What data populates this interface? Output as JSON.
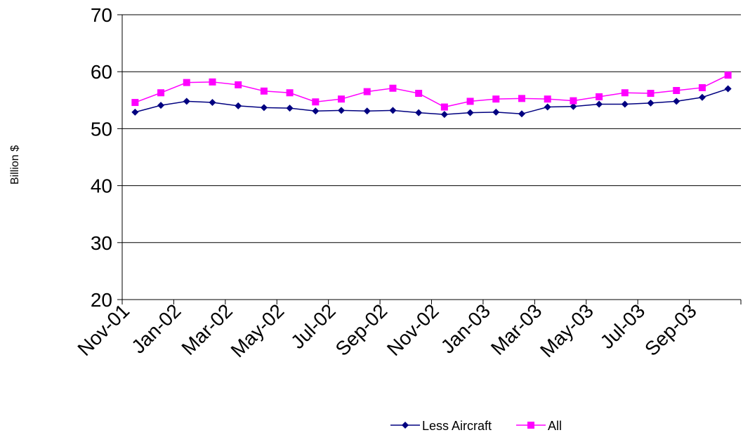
{
  "chart_data": {
    "type": "line",
    "ylabel": "Billion $",
    "ylim": [
      20,
      70
    ],
    "yticks": [
      20,
      30,
      40,
      50,
      60,
      70
    ],
    "xtick_labels": [
      "Nov-01",
      "Jan-02",
      "Mar-02",
      "May-02",
      "Jul-02",
      "Sep-02",
      "Nov-02",
      "Jan-03",
      "Mar-03",
      "May-03",
      "Jul-03",
      "Sep-03"
    ],
    "x": [
      "Nov-01",
      "Dec-01",
      "Jan-02",
      "Feb-02",
      "Mar-02",
      "Apr-02",
      "May-02",
      "Jun-02",
      "Jul-02",
      "Aug-02",
      "Sep-02",
      "Oct-02",
      "Nov-02",
      "Dec-02",
      "Jan-03",
      "Feb-03",
      "Mar-03",
      "Apr-03",
      "May-03",
      "Jun-03",
      "Jul-03",
      "Aug-03",
      "Sep-03",
      "Oct-03"
    ],
    "grid": "horizontal",
    "legend_position": "bottom",
    "series": [
      {
        "name": "Less Aircraft",
        "color": "#000080",
        "marker": "diamond",
        "values": [
          52.9,
          54.1,
          54.8,
          54.6,
          54.0,
          53.7,
          53.6,
          53.1,
          53.2,
          53.1,
          53.2,
          52.8,
          52.5,
          52.8,
          52.9,
          52.6,
          53.8,
          53.9,
          54.3,
          54.3,
          54.5,
          54.8,
          55.5,
          57.0
        ]
      },
      {
        "name": "All",
        "color": "#ff00ff",
        "marker": "square",
        "values": [
          54.6,
          56.3,
          58.1,
          58.2,
          57.7,
          56.6,
          56.3,
          54.7,
          55.2,
          56.5,
          57.1,
          56.2,
          53.8,
          54.8,
          55.2,
          55.3,
          55.2,
          54.9,
          55.6,
          56.3,
          56.2,
          56.7,
          57.2,
          59.4
        ]
      }
    ]
  }
}
